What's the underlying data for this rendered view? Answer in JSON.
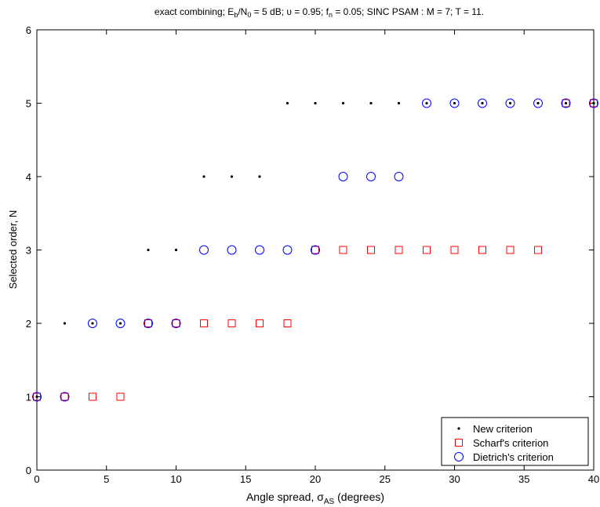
{
  "chart_data": {
    "type": "scatter",
    "title_parts": {
      "p1": "exact combining; E",
      "p2": "b",
      "p3": "/N",
      "p4": "0",
      "p5": " = 5 dB; υ = 0.95; f",
      "p6": "n",
      "p7": " = 0.05; SINC PSAM : M = 7; T = 11."
    },
    "xlabel_parts": {
      "p1": "Angle spread, σ",
      "p2": "AS",
      "p3": " (degrees)"
    },
    "ylabel": "Selected order, N",
    "xlim": [
      0,
      40
    ],
    "ylim": [
      0,
      6
    ],
    "xticks": [
      "0",
      "5",
      "10",
      "15",
      "20",
      "25",
      "30",
      "35",
      "40"
    ],
    "yticks": [
      "0",
      "1",
      "2",
      "3",
      "4",
      "5",
      "6"
    ],
    "legend_position": "bottom-right",
    "series": [
      {
        "name": "New criterion",
        "marker": "dot",
        "color": "#000000",
        "x": [
          0,
          2,
          4,
          6,
          8,
          10,
          12,
          14,
          16,
          18,
          20,
          22,
          24,
          26,
          28,
          30,
          32,
          34,
          36,
          38,
          40
        ],
        "y": [
          1,
          2,
          2,
          2,
          3,
          3,
          4,
          4,
          4,
          5,
          5,
          5,
          5,
          5,
          5,
          5,
          5,
          5,
          5,
          5,
          5
        ]
      },
      {
        "name": "Scharf's criterion",
        "marker": "square",
        "color": "#ff0000",
        "x": [
          0,
          2,
          4,
          6,
          8,
          10,
          12,
          14,
          16,
          18,
          20,
          22,
          24,
          26,
          28,
          30,
          32,
          34,
          36,
          38,
          40
        ],
        "y": [
          1,
          1,
          1,
          1,
          2,
          2,
          2,
          2,
          2,
          2,
          3,
          3,
          3,
          3,
          3,
          3,
          3,
          3,
          3,
          5,
          5
        ]
      },
      {
        "name": "Dietrich's criterion",
        "marker": "circle",
        "color": "#0000ff",
        "x": [
          0,
          2,
          4,
          6,
          8,
          10,
          12,
          14,
          16,
          18,
          20,
          22,
          24,
          26,
          28,
          30,
          32,
          34,
          36,
          38,
          40
        ],
        "y": [
          1,
          1,
          2,
          2,
          2,
          2,
          3,
          3,
          3,
          3,
          3,
          4,
          4,
          4,
          5,
          5,
          5,
          5,
          5,
          5,
          5
        ]
      }
    ]
  }
}
